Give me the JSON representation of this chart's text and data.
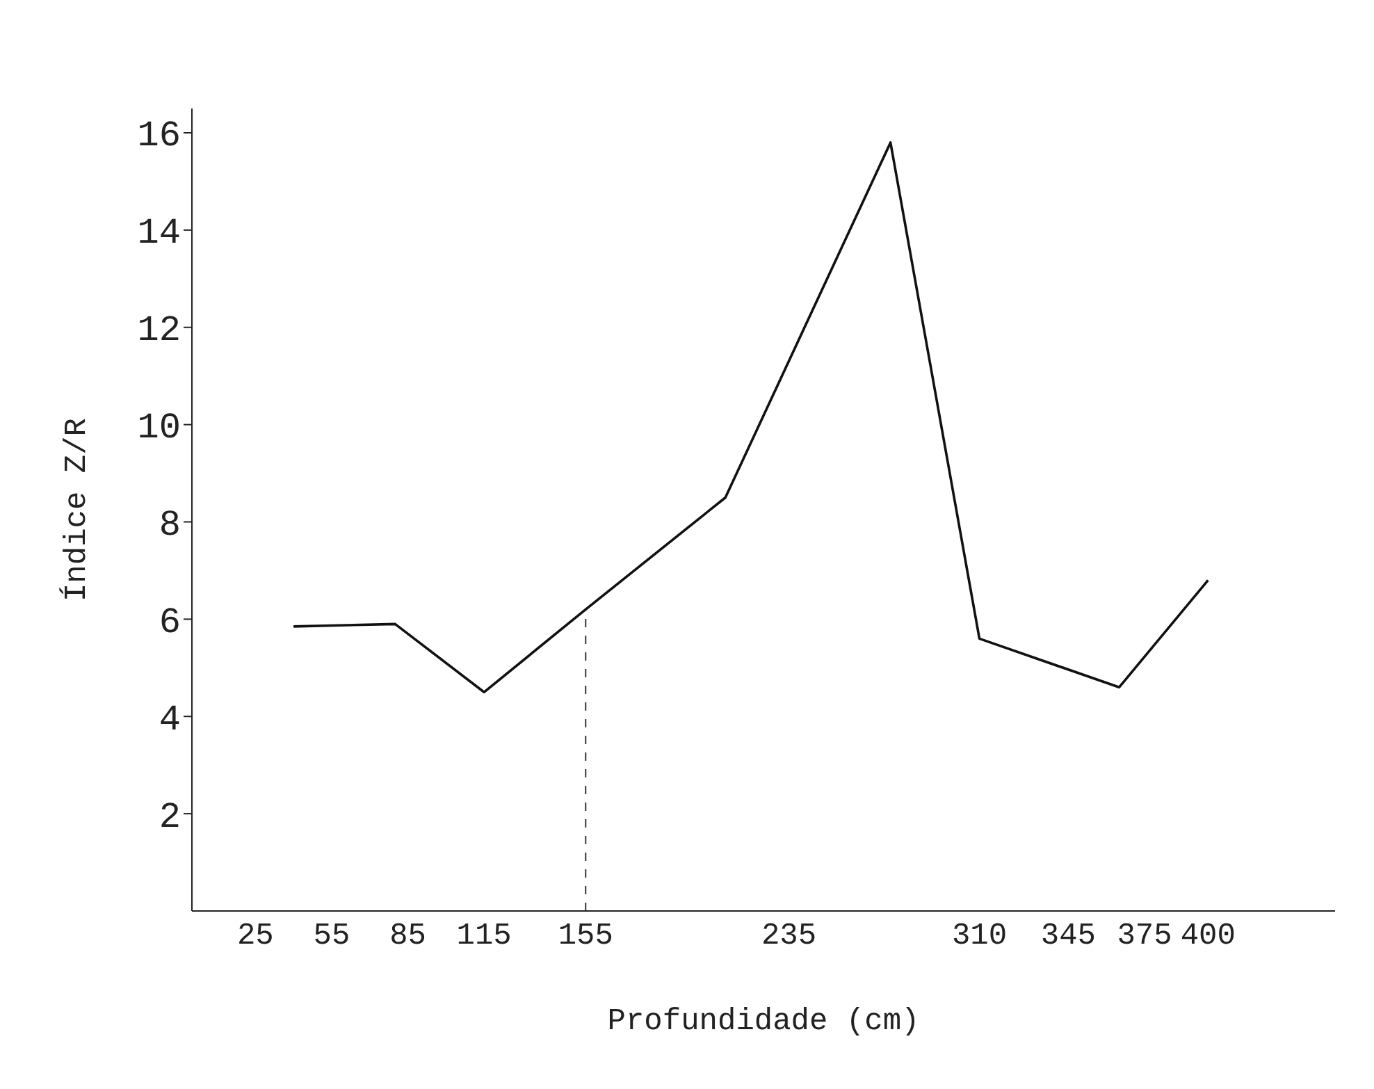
{
  "chart_data": {
    "type": "line",
    "xlabel": "Profundidade (cm)",
    "ylabel": "Índice Z/R",
    "x": [
      40,
      80,
      115,
      155,
      210,
      275,
      310,
      365,
      400
    ],
    "series": [
      {
        "color": "#111111",
        "values": [
          5.85,
          5.9,
          4.5,
          6.2,
          8.5,
          15.8,
          5.6,
          4.6,
          6.8
        ]
      }
    ],
    "xlim": [
      0,
      450
    ],
    "xticks": [
      25,
      55,
      85,
      115,
      155,
      235,
      310,
      345,
      375,
      400
    ],
    "ylim": [
      0,
      16.5
    ],
    "yticks": [
      2,
      4,
      6,
      8,
      10,
      12,
      14,
      16
    ],
    "ref_lines": [
      {
        "axis": "x",
        "value": 155,
        "line_style": "dashed",
        "color": "#333333"
      }
    ],
    "grid": false,
    "marker": "none",
    "line_style": "solid",
    "legend": false
  }
}
